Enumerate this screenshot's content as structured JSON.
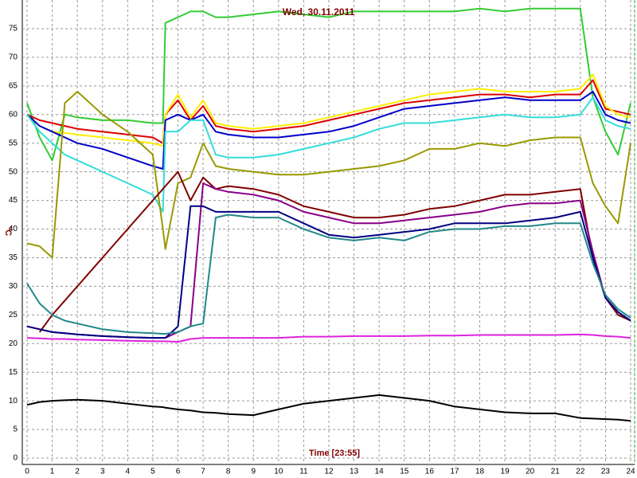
{
  "chart_data": {
    "type": "line",
    "title": "Wed, 30.11.2011",
    "xlabel": "Time [23:55]",
    "ylabel": "°C",
    "x": [
      0,
      0.5,
      1,
      1.5,
      2,
      3,
      4,
      5,
      5.4,
      5.5,
      6,
      6.5,
      7,
      7.5,
      8,
      9,
      10,
      11,
      12,
      13,
      14,
      15,
      16,
      17,
      18,
      19,
      20,
      21,
      22,
      22.5,
      23,
      23.5,
      24
    ],
    "xlim": [
      0,
      24
    ],
    "xticks": [
      0,
      1,
      2,
      3,
      4,
      5,
      6,
      7,
      8,
      9,
      10,
      11,
      12,
      13,
      14,
      15,
      16,
      17,
      18,
      19,
      20,
      21,
      22,
      23,
      24
    ],
    "ylim": [
      0,
      80
    ],
    "yticks": [
      0,
      5,
      10,
      15,
      20,
      25,
      30,
      35,
      40,
      45,
      50,
      55,
      60,
      65,
      70,
      75
    ],
    "grid": true,
    "series": [
      {
        "color": "#33cc33",
        "values": [
          62,
          56,
          52,
          60,
          59.5,
          59,
          59,
          58.5,
          58.5,
          76,
          77,
          78,
          78,
          77,
          77,
          77.5,
          78,
          77.5,
          77,
          78,
          78,
          78,
          78,
          78,
          78.5,
          78,
          78.5,
          78.5,
          78.5,
          63,
          57,
          53,
          62
        ]
      },
      {
        "color": "#dd0000",
        "values": [
          60,
          59,
          58.5,
          58,
          57.5,
          57,
          56.5,
          56,
          55,
          60,
          62.5,
          59,
          61.5,
          58,
          57.5,
          57,
          57.5,
          58,
          59,
          60,
          61,
          62,
          62.5,
          63,
          63.5,
          63.5,
          63,
          63.5,
          63.5,
          66,
          61,
          60.5,
          60
        ]
      },
      {
        "color": "#ffee00",
        "values": [
          60,
          58,
          57,
          56.8,
          56.5,
          56,
          55.5,
          55,
          54.5,
          60,
          63.5,
          59.5,
          62.5,
          58.5,
          58,
          57.5,
          58,
          58.5,
          59.5,
          60.5,
          61.5,
          62.5,
          63.5,
          64,
          64.5,
          64,
          64,
          64,
          64.5,
          67,
          61.5,
          60,
          59.5
        ]
      },
      {
        "color": "#0000cc",
        "values": [
          60,
          58,
          57,
          56,
          55,
          54,
          52.5,
          51,
          50.5,
          59,
          60,
          59,
          60,
          57,
          56.5,
          56,
          56,
          56.5,
          57,
          58,
          59.5,
          61,
          61.5,
          62,
          62.5,
          63,
          62.5,
          62.5,
          62.5,
          64,
          60,
          59,
          58.5
        ]
      },
      {
        "color": "#33dddd",
        "values": [
          60,
          57,
          55,
          53,
          52,
          50,
          48,
          46,
          43,
          57,
          57,
          59,
          59,
          53,
          52.5,
          52.5,
          53,
          54,
          55,
          56,
          57.5,
          58.5,
          58.5,
          59,
          59.5,
          60,
          59.5,
          59.5,
          60,
          63,
          59,
          58,
          57.5
        ]
      },
      {
        "color": "#999900",
        "values": [
          37.5,
          37,
          35,
          62,
          64,
          60,
          57,
          53,
          40,
          36.5,
          48,
          49,
          55,
          51,
          50.5,
          50,
          49.5,
          49.5,
          50,
          50.5,
          51,
          52,
          54,
          54,
          55,
          54.5,
          55.5,
          56,
          56,
          48,
          44,
          41,
          55
        ]
      },
      {
        "color": "#800000",
        "values": [
          null,
          22,
          25,
          27.5,
          30,
          35,
          40,
          45,
          47,
          47.5,
          50,
          45,
          49,
          47,
          47.5,
          47,
          46,
          44,
          43,
          42,
          42,
          42.5,
          43.5,
          44,
          45,
          46,
          46,
          46.5,
          47,
          35,
          28,
          25,
          24
        ]
      },
      {
        "color": "#880088",
        "values": [
          23,
          22.5,
          22,
          21.8,
          21.6,
          21.3,
          21.1,
          21,
          21,
          21,
          22,
          23,
          48,
          47,
          46.5,
          46,
          45,
          43,
          42,
          41,
          41,
          41.5,
          42,
          42.5,
          43,
          44,
          44.5,
          44.5,
          45,
          36,
          28,
          25.5,
          24
        ]
      },
      {
        "color": "#000080",
        "values": [
          23,
          22.5,
          22,
          21.8,
          21.6,
          21.3,
          21.1,
          21,
          21,
          21,
          23,
          44,
          44,
          43,
          43,
          43,
          43,
          41,
          39,
          38.5,
          39,
          39.5,
          40,
          41,
          41,
          41,
          41.5,
          42,
          43,
          35,
          28,
          25.5,
          24
        ]
      },
      {
        "color": "#228888",
        "values": [
          30.5,
          27,
          25,
          24,
          23.5,
          22.5,
          22,
          21.8,
          21.7,
          21.7,
          22,
          23,
          23.5,
          42,
          42.5,
          42,
          42,
          40,
          38.5,
          38,
          38.5,
          38,
          39.5,
          40,
          40,
          40.5,
          40.5,
          41,
          41,
          34,
          28.5,
          26,
          24.5
        ]
      },
      {
        "color": "#dd22dd",
        "values": [
          21,
          20.9,
          20.8,
          20.8,
          20.7,
          20.6,
          20.5,
          20.4,
          20.4,
          20.4,
          20.3,
          20.8,
          21,
          21,
          21,
          21,
          21,
          21.2,
          21.2,
          21.3,
          21.3,
          21.3,
          21.4,
          21.4,
          21.5,
          21.5,
          21.5,
          21.5,
          21.6,
          21.5,
          21.3,
          21.2,
          21
        ]
      },
      {
        "color": "#000000",
        "values": [
          9.3,
          9.8,
          10,
          10.1,
          10.2,
          10,
          9.5,
          9,
          8.9,
          8.8,
          8.5,
          8.3,
          8,
          7.9,
          7.7,
          7.5,
          8.5,
          9.5,
          10,
          10.5,
          11,
          10.5,
          10,
          9,
          8.5,
          8,
          7.8,
          7.8,
          7,
          6.9,
          6.8,
          6.7,
          6.5
        ]
      }
    ]
  }
}
